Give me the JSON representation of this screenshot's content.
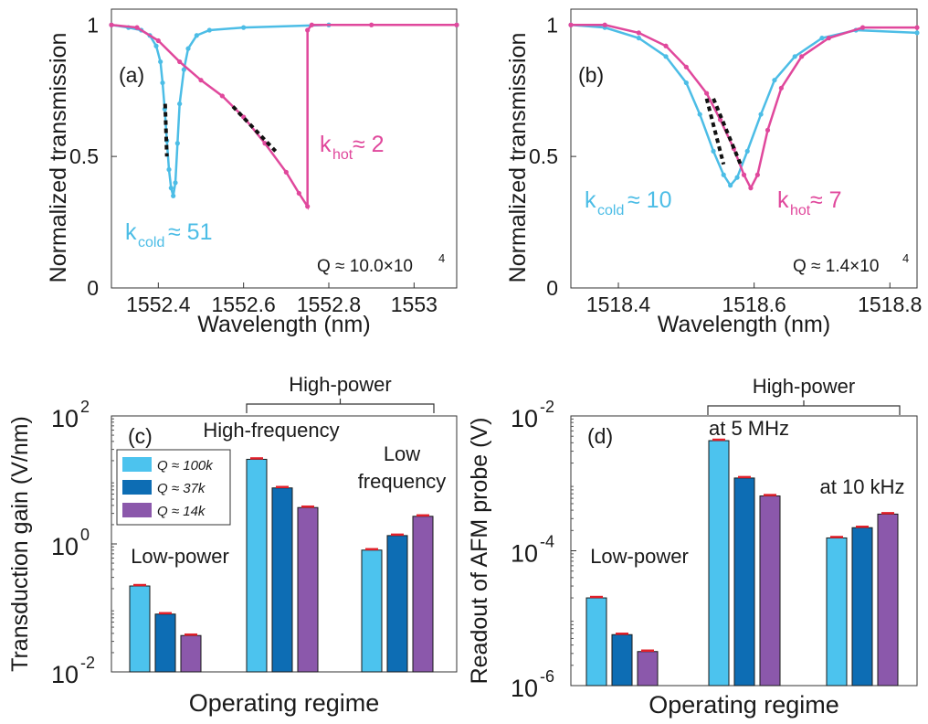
{
  "colors": {
    "cyan": "#4cbde6",
    "magenta": "#e0489c",
    "bar_light": "#4cc3ee",
    "bar_mid": "#0d6db4",
    "bar_purple": "#8b58ab",
    "error": "#e0202a",
    "dash": "#111111"
  },
  "chart_data": [
    {
      "panel": "(a)",
      "type": "line",
      "ylabel": "Normalized transmission",
      "xlabel": "Wavelength (nm)",
      "xlim": [
        1552.29,
        1553.1
      ],
      "ylim": [
        0,
        1.06
      ],
      "xticks": [
        1552.4,
        1552.6,
        1552.8,
        1553
      ],
      "xtick_labels": [
        "1552.4",
        "1552.6",
        "1552.8",
        "1553"
      ],
      "yticks": [
        0,
        0.5,
        1
      ],
      "ytick_labels": [
        "0",
        "0.5",
        "1"
      ],
      "q_text": "Q ≈ 10.0×10",
      "q_exp": "4",
      "series": [
        {
          "label_main": "k",
          "label_sub": "cold",
          "label_val": " ≈ 51",
          "color": "cyan",
          "points": [
            [
              1552.29,
              1.0
            ],
            [
              1552.33,
              0.99
            ],
            [
              1552.36,
              0.98
            ],
            [
              1552.38,
              0.96
            ],
            [
              1552.395,
              0.92
            ],
            [
              1552.405,
              0.86
            ],
            [
              1552.41,
              0.78
            ],
            [
              1552.415,
              0.68
            ],
            [
              1552.42,
              0.56
            ],
            [
              1552.425,
              0.45
            ],
            [
              1552.43,
              0.38
            ],
            [
              1552.435,
              0.35
            ],
            [
              1552.44,
              0.4
            ],
            [
              1552.445,
              0.55
            ],
            [
              1552.45,
              0.7
            ],
            [
              1552.46,
              0.83
            ],
            [
              1552.47,
              0.91
            ],
            [
              1552.49,
              0.96
            ],
            [
              1552.52,
              0.98
            ],
            [
              1552.6,
              0.99
            ],
            [
              1552.8,
              1.0
            ],
            [
              1553.1,
              1.0
            ]
          ]
        },
        {
          "label_main": "k",
          "label_sub": "hot",
          "label_val": " ≈ 2",
          "color": "magenta",
          "points": [
            [
              1552.29,
              1.0
            ],
            [
              1552.35,
              0.99
            ],
            [
              1552.4,
              0.94
            ],
            [
              1552.45,
              0.86
            ],
            [
              1552.5,
              0.79
            ],
            [
              1552.55,
              0.73
            ],
            [
              1552.6,
              0.65
            ],
            [
              1552.65,
              0.55
            ],
            [
              1552.7,
              0.44
            ],
            [
              1552.73,
              0.36
            ],
            [
              1552.75,
              0.31
            ],
            [
              1552.75,
              0.98
            ],
            [
              1552.76,
              1.0
            ],
            [
              1552.9,
              1.0
            ],
            [
              1553.1,
              1.0
            ]
          ]
        }
      ]
    },
    {
      "panel": "(b)",
      "type": "line",
      "ylabel": "Normalized transmission",
      "xlabel": "Wavelength (nm)",
      "xlim": [
        1518.33,
        1518.84
      ],
      "ylim": [
        0,
        1.06
      ],
      "xticks": [
        1518.4,
        1518.6,
        1518.8
      ],
      "xtick_labels": [
        "1518.4",
        "1518.6",
        "1518.8"
      ],
      "yticks": [
        0,
        0.5,
        1
      ],
      "ytick_labels": [
        "0",
        "0.5",
        "1"
      ],
      "q_text": "Q ≈ 1.4×10",
      "q_exp": "4",
      "series": [
        {
          "label_main": "k",
          "label_sub": "cold",
          "label_val": " ≈ 10",
          "color": "cyan",
          "points": [
            [
              1518.33,
              1.0
            ],
            [
              1518.38,
              0.99
            ],
            [
              1518.43,
              0.95
            ],
            [
              1518.47,
              0.88
            ],
            [
              1518.5,
              0.78
            ],
            [
              1518.52,
              0.66
            ],
            [
              1518.54,
              0.52
            ],
            [
              1518.555,
              0.43
            ],
            [
              1518.565,
              0.39
            ],
            [
              1518.575,
              0.42
            ],
            [
              1518.59,
              0.52
            ],
            [
              1518.61,
              0.66
            ],
            [
              1518.63,
              0.79
            ],
            [
              1518.66,
              0.88
            ],
            [
              1518.7,
              0.95
            ],
            [
              1518.75,
              0.98
            ],
            [
              1518.84,
              0.97
            ]
          ]
        },
        {
          "label_main": "k",
          "label_sub": "hot",
          "label_val": " ≈ 7",
          "color": "magenta",
          "points": [
            [
              1518.33,
              1.0
            ],
            [
              1518.38,
              1.0
            ],
            [
              1518.43,
              0.97
            ],
            [
              1518.47,
              0.92
            ],
            [
              1518.5,
              0.84
            ],
            [
              1518.53,
              0.74
            ],
            [
              1518.55,
              0.64
            ],
            [
              1518.57,
              0.53
            ],
            [
              1518.585,
              0.43
            ],
            [
              1518.595,
              0.38
            ],
            [
              1518.605,
              0.43
            ],
            [
              1518.62,
              0.6
            ],
            [
              1518.64,
              0.76
            ],
            [
              1518.67,
              0.88
            ],
            [
              1518.71,
              0.95
            ],
            [
              1518.76,
              0.99
            ],
            [
              1518.84,
              0.99
            ]
          ]
        }
      ]
    },
    {
      "panel": "(c)",
      "type": "bar",
      "ylabel": "Transduction gain (V/nm)",
      "xlabel": "Operating regime",
      "yscale": "log",
      "ylim": [
        0.01,
        100
      ],
      "ytick_base": "10",
      "ytick_exps": [
        "-2",
        "0",
        "2"
      ],
      "bracket": "High-power",
      "legend": [
        "Q ≈ 100k",
        "Q ≈ 37k",
        "Q ≈ 14k"
      ],
      "groups": [
        {
          "label": [
            "Low-power"
          ],
          "values": [
            0.22,
            0.08,
            0.037
          ]
        },
        {
          "label": [
            "High-frequency"
          ],
          "values": [
            21,
            7.5,
            3.7
          ]
        },
        {
          "label": [
            "Low",
            "frequency"
          ],
          "values": [
            0.8,
            1.35,
            2.7
          ]
        }
      ]
    },
    {
      "panel": "(d)",
      "type": "bar",
      "ylabel": "Readout of AFM probe (V)",
      "xlabel": "Operating regime",
      "yscale": "log",
      "ylim": [
        1e-06,
        0.01
      ],
      "ytick_base": "10",
      "ytick_exps": [
        "-6",
        "-4",
        "-2"
      ],
      "bracket": "High-power",
      "groups": [
        {
          "label": [
            "Low-power"
          ],
          "values": [
            2e-05,
            5.7e-06,
            3.2e-06
          ]
        },
        {
          "label": [
            "at 5 MHz"
          ],
          "values": [
            0.0043,
            0.0012,
            0.00065
          ]
        },
        {
          "label": [
            "at 10 kHz"
          ],
          "values": [
            0.000155,
            0.00022,
            0.00035
          ]
        }
      ]
    }
  ]
}
